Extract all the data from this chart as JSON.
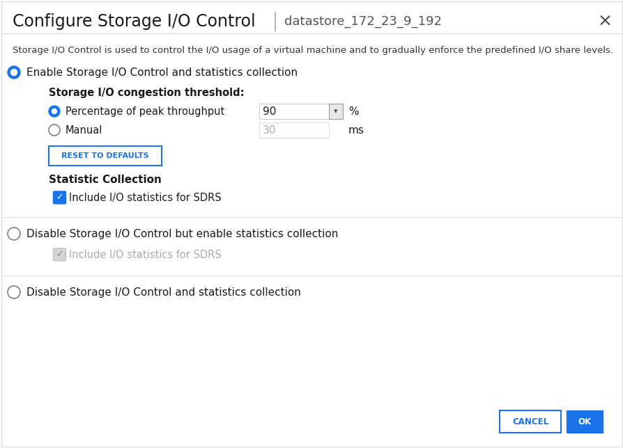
{
  "title": "Configure Storage I/O Control",
  "subtitle": "datastore_172_23_9_192",
  "description": "Storage I/O Control is used to control the I/O usage of a virtual machine and to gradually enforce the predefined I/O share levels.",
  "bg_color": "#ffffff",
  "border_color": "#e0e0e0",
  "blue_color": "#1a73e8",
  "text_color": "#1a1a1a",
  "gray_color": "#aaaaaa",
  "option1_label": "Enable Storage I/O Control and statistics collection",
  "threshold_label": "Storage I/O congestion threshold:",
  "pct_label": "Percentage of peak throughput",
  "pct_value": "90",
  "pct_unit": "%",
  "manual_label": "Manual",
  "manual_value": "30",
  "manual_unit": "ms",
  "reset_btn": "RESET TO DEFAULTS",
  "stat_section": "Statistic Collection",
  "checkbox1_label": "Include I/O statistics for SDRS",
  "option2_label": "Disable Storage I/O Control but enable statistics collection",
  "checkbox2_label": "Include I/O statistics for SDRS",
  "option3_label": "Disable Storage I/O Control and statistics collection",
  "cancel_btn": "CANCEL",
  "ok_btn": "OK",
  "separator_color": "#cccccc",
  "close_color": "#444444",
  "title_fontsize": 17,
  "subtitle_fontsize": 13,
  "desc_fontsize": 9.5,
  "body_fontsize": 11,
  "small_fontsize": 8.5
}
